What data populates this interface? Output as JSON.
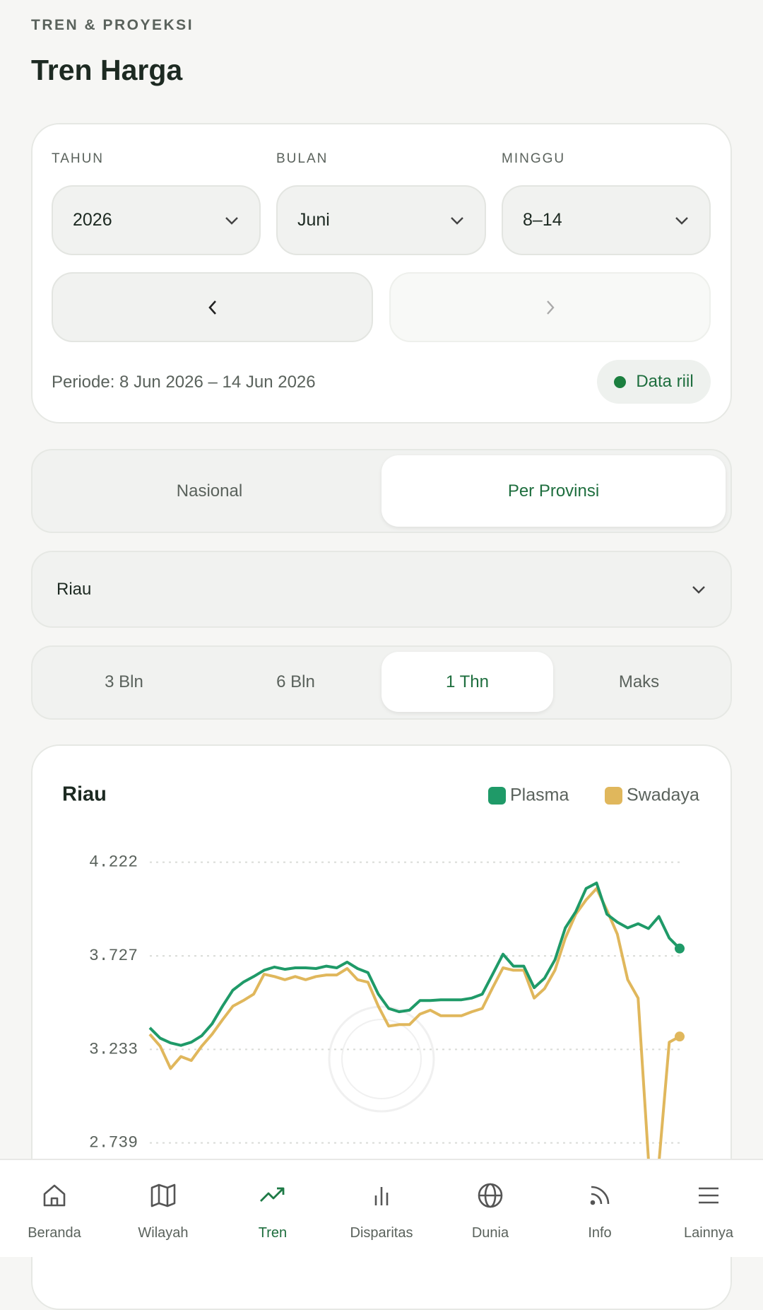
{
  "header": {
    "eyebrow": "TREN & PROYEKSI",
    "title": "Tren Harga"
  },
  "filters": {
    "year_label": "TAHUN",
    "year": "2026",
    "month_label": "BULAN",
    "month": "Juni",
    "week_label": "MINGGU",
    "week": "8–14",
    "period": "Periode: 8 Jun 2026 – 14 Jun 2026",
    "status": "Data riil"
  },
  "scope_tabs": [
    "Nasional",
    "Per Provinsi"
  ],
  "province": "Riau",
  "range_tabs": [
    "3 Bln",
    "6 Bln",
    "1 Thn",
    "Maks"
  ],
  "chart_data": {
    "type": "line",
    "title": "Riau",
    "categories": [
      null,
      null,
      null,
      null,
      null,
      null,
      null,
      null,
      null,
      null,
      null,
      null,
      null,
      null,
      null,
      null,
      null,
      null,
      null,
      null,
      null,
      null,
      null,
      null,
      null,
      null,
      null,
      null,
      null,
      null,
      null,
      null,
      null,
      null,
      null,
      null,
      null,
      null,
      null,
      null,
      null,
      null,
      null,
      null,
      null,
      null,
      null,
      null,
      null,
      null,
      null,
      null
    ],
    "series": [
      {
        "name": "Plasma",
        "color": "#1f9a68",
        "values": [
          3347,
          3292,
          3267,
          3254,
          3271,
          3305,
          3368,
          3461,
          3546,
          3588,
          3618,
          3651,
          3668,
          3656,
          3664,
          3664,
          3660,
          3673,
          3664,
          3694,
          3660,
          3639,
          3525,
          3449,
          3432,
          3440,
          3491,
          3491,
          3495,
          3495,
          3495,
          3504,
          3525,
          3630,
          3736,
          3673,
          3673,
          3559,
          3609,
          3706,
          3875,
          3960,
          4083,
          4112,
          3947,
          3905,
          3875,
          3897,
          3871,
          3935,
          3821,
          3766
        ]
      },
      {
        "name": "Swadaya",
        "color": "#e0b75c",
        "values": [
          3313,
          3250,
          3132,
          3195,
          3174,
          3250,
          3313,
          3389,
          3461,
          3491,
          3525,
          3630,
          3618,
          3601,
          3618,
          3601,
          3618,
          3626,
          3626,
          3660,
          3601,
          3588,
          3461,
          3356,
          3364,
          3364,
          3419,
          3440,
          3411,
          3411,
          3411,
          3432,
          3449,
          3559,
          3664,
          3651,
          3651,
          3504,
          3554,
          3651,
          3821,
          3947,
          4023,
          4083,
          3968,
          3842,
          3601,
          3504,
          2650,
          2630,
          3271,
          3301
        ]
      }
    ],
    "ylim": [
      2600,
      4300
    ],
    "yticks": [
      {
        "value": 4222,
        "label": "4.222"
      },
      {
        "value": 3727,
        "label": "3.727"
      },
      {
        "value": 3233,
        "label": "3.233"
      },
      {
        "value": 2739,
        "label": "2.739"
      }
    ],
    "grid": true
  },
  "nav": [
    "Beranda",
    "Wilayah",
    "Tren",
    "Disparitas",
    "Dunia",
    "Info",
    "Lainnya"
  ]
}
